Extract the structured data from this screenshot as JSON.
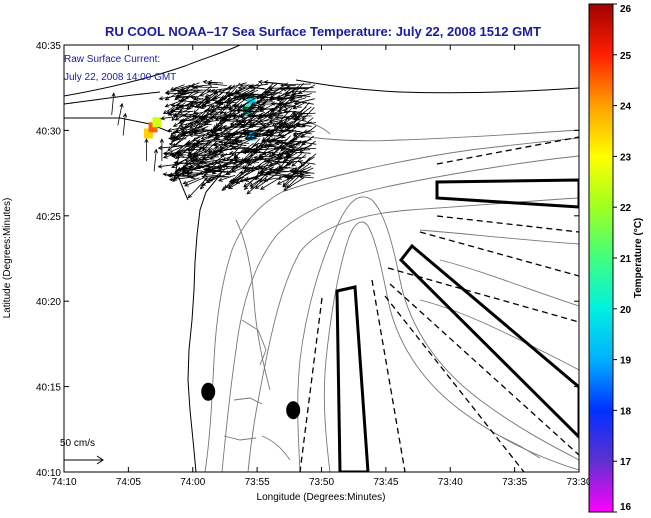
{
  "chart_data": {
    "type": "scatter",
    "title": "RU COOL  NOAA–17  Sea Surface Temperature:  July 22, 2008 1512 GMT",
    "subtitle": [
      "Raw Surface Current:",
      "July 22, 2008 14:00 GMT"
    ],
    "xlabel": "Longitude (Degrees:Minutes)",
    "ylabel": "Latitude (Degrees:Minutes)",
    "x_ticks": [
      "74:10",
      "74:05",
      "74:00",
      "73:55",
      "73:50",
      "73:45",
      "73:40",
      "73:35",
      "73:30"
    ],
    "y_ticks": [
      "40:10",
      "40:15",
      "40:20",
      "40:25",
      "40:30",
      "40:35"
    ],
    "xlim": [
      -74.1667,
      -73.5
    ],
    "ylim": [
      40.1667,
      40.5833
    ],
    "grid": false,
    "scale_arrow_label": "50 cm/s",
    "colorbar": {
      "label": "Temperature (°C)",
      "ticks": [
        "16",
        "17",
        "18",
        "19",
        "20",
        "21",
        "22",
        "23",
        "24",
        "25",
        "26"
      ],
      "range": [
        16,
        26
      ]
    },
    "sst_patches": [
      {
        "lon": -74.058,
        "lat": 40.497,
        "temp": 23.5
      },
      {
        "lon": -74.052,
        "lat": 40.503,
        "temp": 24.5
      },
      {
        "lon": -74.047,
        "lat": 40.508,
        "temp": 22.5
      },
      {
        "lon": -73.93,
        "lat": 40.52,
        "temp": 20.2
      },
      {
        "lon": -73.925,
        "lat": 40.53,
        "temp": 19.6
      },
      {
        "lon": -73.925,
        "lat": 40.495,
        "temp": 19.2
      }
    ],
    "buoys": [
      {
        "lon": -73.98,
        "lat": 40.245
      },
      {
        "lon": -73.87,
        "lat": 40.227
      }
    ],
    "current_field": {
      "lon_range": [
        -74.01,
        -73.84
      ],
      "lat_range": [
        40.455,
        40.545
      ],
      "mean_direction_deg": 200,
      "typical_speed_cm_s": 25
    },
    "coastal_vectors": [
      {
        "lon": -74.105,
        "lat": 40.515,
        "u": 0.1,
        "v": 1.0
      },
      {
        "lon": -74.097,
        "lat": 40.505,
        "u": 0.2,
        "v": 1.0
      },
      {
        "lon": -74.09,
        "lat": 40.495,
        "u": 0.1,
        "v": 1.0
      },
      {
        "lon": -74.06,
        "lat": 40.47,
        "u": 0.0,
        "v": 1.0
      },
      {
        "lon": -74.05,
        "lat": 40.46,
        "u": 0.1,
        "v": 1.0
      },
      {
        "lon": -74.04,
        "lat": 40.47,
        "u": 0.0,
        "v": 1.0
      },
      {
        "lon": -74.025,
        "lat": 40.452,
        "u": 0.8,
        "v": 0.6
      }
    ]
  }
}
